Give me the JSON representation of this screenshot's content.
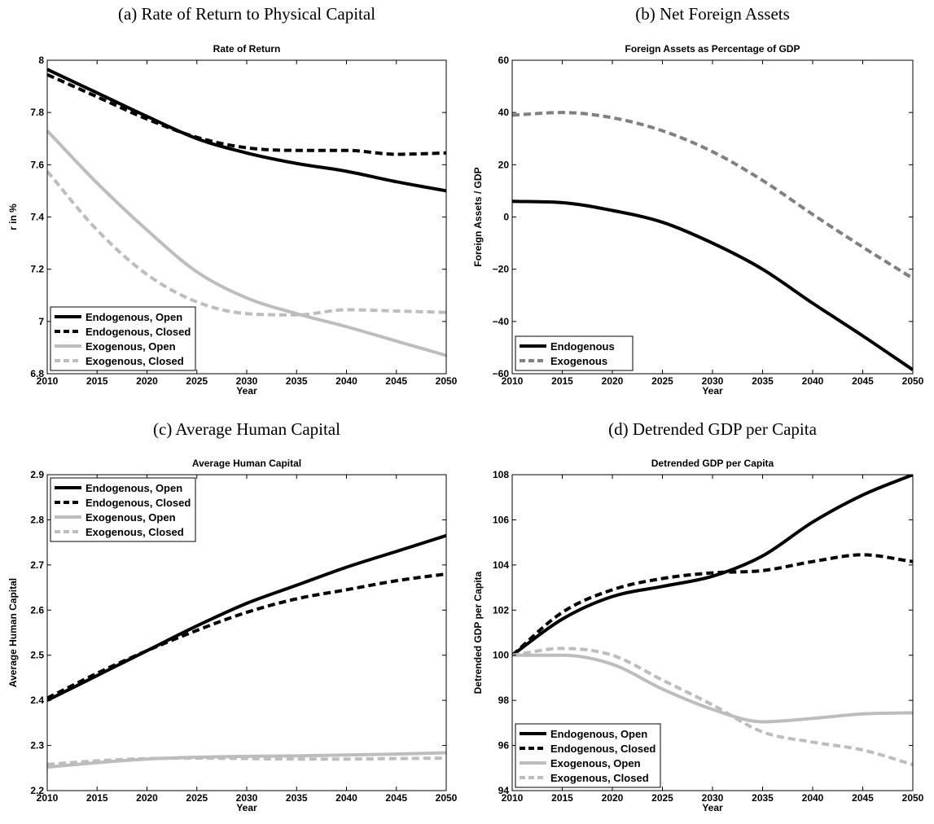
{
  "colors": {
    "endogenous": "#000000",
    "exogenous_light": "#bdbdbd",
    "exogenous_dark": "#808080"
  },
  "chart_data": [
    {
      "type": "line",
      "caption": "(a)  Rate of Return to Physical Capital",
      "title": "Rate of Return",
      "xlabel": "Year",
      "ylabel": "r in %",
      "xlim": [
        2010,
        2050
      ],
      "ylim": [
        6.8,
        8
      ],
      "xticks": [
        "2010",
        "2015",
        "2020",
        "2025",
        "2030",
        "2035",
        "2040",
        "2045",
        "2050"
      ],
      "yticks": [
        "6.8",
        "7",
        "7.2",
        "7.4",
        "7.6",
        "7.8",
        "8"
      ],
      "legend_position": "bottom-left",
      "grid": false,
      "series": [
        {
          "name": "Endogenous, Open",
          "color": "#000000",
          "dash": "solid",
          "x": [
            2010,
            2015,
            2020,
            2025,
            2030,
            2035,
            2040,
            2045,
            2050
          ],
          "y": [
            7.965,
            7.875,
            7.785,
            7.7,
            7.645,
            7.605,
            7.575,
            7.535,
            7.5
          ]
        },
        {
          "name": "Endogenous, Closed",
          "color": "#000000",
          "dash": "dashed",
          "x": [
            2010,
            2015,
            2020,
            2025,
            2030,
            2035,
            2040,
            2045,
            2050
          ],
          "y": [
            7.945,
            7.86,
            7.775,
            7.705,
            7.665,
            7.655,
            7.655,
            7.64,
            7.645
          ]
        },
        {
          "name": "Exogenous, Open",
          "color": "#bdbdbd",
          "dash": "solid",
          "x": [
            2010,
            2015,
            2020,
            2025,
            2030,
            2035,
            2040,
            2045,
            2050
          ],
          "y": [
            7.73,
            7.53,
            7.35,
            7.19,
            7.09,
            7.03,
            6.98,
            6.925,
            6.87
          ]
        },
        {
          "name": "Exogenous, Closed",
          "color": "#bdbdbd",
          "dash": "dashed",
          "x": [
            2010,
            2015,
            2020,
            2025,
            2030,
            2035,
            2040,
            2045,
            2050
          ],
          "y": [
            7.575,
            7.35,
            7.18,
            7.075,
            7.03,
            7.025,
            7.045,
            7.04,
            7.035
          ]
        }
      ]
    },
    {
      "type": "line",
      "caption": "(b)  Net Foreign Assets",
      "title": "Foreign Assets as Percentage of GDP",
      "xlabel": "Year",
      "ylabel": "Foreign Assets / GDP",
      "xlim": [
        2010,
        2050
      ],
      "ylim": [
        -60,
        60
      ],
      "xticks": [
        "2010",
        "2015",
        "2020",
        "2025",
        "2030",
        "2035",
        "2040",
        "2045",
        "2050"
      ],
      "yticks": [
        "−60",
        "−40",
        "−20",
        "0",
        "20",
        "40",
        "60"
      ],
      "legend_position": "bottom-left",
      "grid": false,
      "series": [
        {
          "name": "Endogenous",
          "color": "#000000",
          "dash": "solid",
          "x": [
            2010,
            2015,
            2020,
            2025,
            2030,
            2035,
            2040,
            2045,
            2050
          ],
          "y": [
            6,
            5.5,
            2.5,
            -2,
            -10,
            -20,
            -33,
            -45.5,
            -58.5
          ]
        },
        {
          "name": "Exogenous",
          "color": "#808080",
          "dash": "dashed",
          "x": [
            2010,
            2015,
            2020,
            2025,
            2030,
            2035,
            2040,
            2045,
            2050
          ],
          "y": [
            39,
            40,
            38,
            33,
            25,
            14,
            1,
            -11.5,
            -23.5
          ]
        }
      ]
    },
    {
      "type": "line",
      "caption": "(c)  Average Human Capital",
      "title": "Average Human Capital",
      "xlabel": "Year",
      "ylabel": "Average Human Capital",
      "xlim": [
        2010,
        2050
      ],
      "ylim": [
        2.2,
        2.9
      ],
      "xticks": [
        "2010",
        "2015",
        "2020",
        "2025",
        "2030",
        "2035",
        "2040",
        "2045",
        "2050"
      ],
      "yticks": [
        "2.2",
        "2.3",
        "2.4",
        "2.5",
        "2.6",
        "2.7",
        "2.8",
        "2.9"
      ],
      "legend_position": "top-left",
      "grid": false,
      "series": [
        {
          "name": "Endogenous, Open",
          "color": "#000000",
          "dash": "solid",
          "x": [
            2010,
            2015,
            2020,
            2025,
            2030,
            2035,
            2040,
            2045,
            2050
          ],
          "y": [
            2.4,
            2.455,
            2.51,
            2.565,
            2.615,
            2.655,
            2.695,
            2.73,
            2.765
          ]
        },
        {
          "name": "Endogenous, Closed",
          "color": "#000000",
          "dash": "dashed",
          "x": [
            2010,
            2015,
            2020,
            2025,
            2030,
            2035,
            2040,
            2045,
            2050
          ],
          "y": [
            2.405,
            2.46,
            2.51,
            2.555,
            2.595,
            2.625,
            2.645,
            2.665,
            2.68
          ]
        },
        {
          "name": "Exogenous, Open",
          "color": "#bdbdbd",
          "dash": "solid",
          "x": [
            2010,
            2015,
            2020,
            2025,
            2030,
            2035,
            2040,
            2045,
            2050
          ],
          "y": [
            2.252,
            2.262,
            2.27,
            2.274,
            2.276,
            2.277,
            2.279,
            2.281,
            2.284
          ]
        },
        {
          "name": "Exogenous, Closed",
          "color": "#bdbdbd",
          "dash": "dashed",
          "x": [
            2010,
            2015,
            2020,
            2025,
            2030,
            2035,
            2040,
            2045,
            2050
          ],
          "y": [
            2.258,
            2.266,
            2.271,
            2.272,
            2.271,
            2.27,
            2.27,
            2.271,
            2.272
          ]
        }
      ]
    },
    {
      "type": "line",
      "caption": "(d)  Detrended GDP per Capita",
      "title": "Detrended GDP per Capita",
      "xlabel": "Year",
      "ylabel": "Detrended GDP per Capita",
      "xlim": [
        2010,
        2050
      ],
      "ylim": [
        94,
        108
      ],
      "xticks": [
        "2010",
        "2015",
        "2020",
        "2025",
        "2030",
        "2035",
        "2040",
        "2045",
        "2050"
      ],
      "yticks": [
        "94",
        "96",
        "98",
        "100",
        "102",
        "104",
        "106",
        "108"
      ],
      "legend_position": "bottom-left",
      "grid": false,
      "series": [
        {
          "name": "Endogenous, Open",
          "color": "#000000",
          "dash": "solid",
          "x": [
            2010,
            2015,
            2020,
            2025,
            2030,
            2035,
            2040,
            2045,
            2050
          ],
          "y": [
            100,
            101.6,
            102.6,
            103.05,
            103.5,
            104.4,
            105.9,
            107.1,
            108
          ]
        },
        {
          "name": "Endogenous, Closed",
          "color": "#000000",
          "dash": "dashed",
          "x": [
            2010,
            2015,
            2020,
            2025,
            2030,
            2035,
            2040,
            2045,
            2050
          ],
          "y": [
            100,
            101.9,
            102.9,
            103.4,
            103.65,
            103.75,
            104.15,
            104.45,
            104.15
          ]
        },
        {
          "name": "Exogenous, Open",
          "color": "#bdbdbd",
          "dash": "solid",
          "x": [
            2010,
            2015,
            2020,
            2025,
            2030,
            2035,
            2040,
            2045,
            2050
          ],
          "y": [
            100,
            100,
            99.6,
            98.5,
            97.6,
            97.05,
            97.2,
            97.4,
            97.45
          ]
        },
        {
          "name": "Exogenous, Closed",
          "color": "#bdbdbd",
          "dash": "dashed",
          "x": [
            2010,
            2015,
            2020,
            2025,
            2030,
            2035,
            2040,
            2045,
            2050
          ],
          "y": [
            100,
            100.3,
            100,
            98.9,
            97.8,
            96.6,
            96.15,
            95.8,
            95.15
          ]
        }
      ]
    }
  ]
}
